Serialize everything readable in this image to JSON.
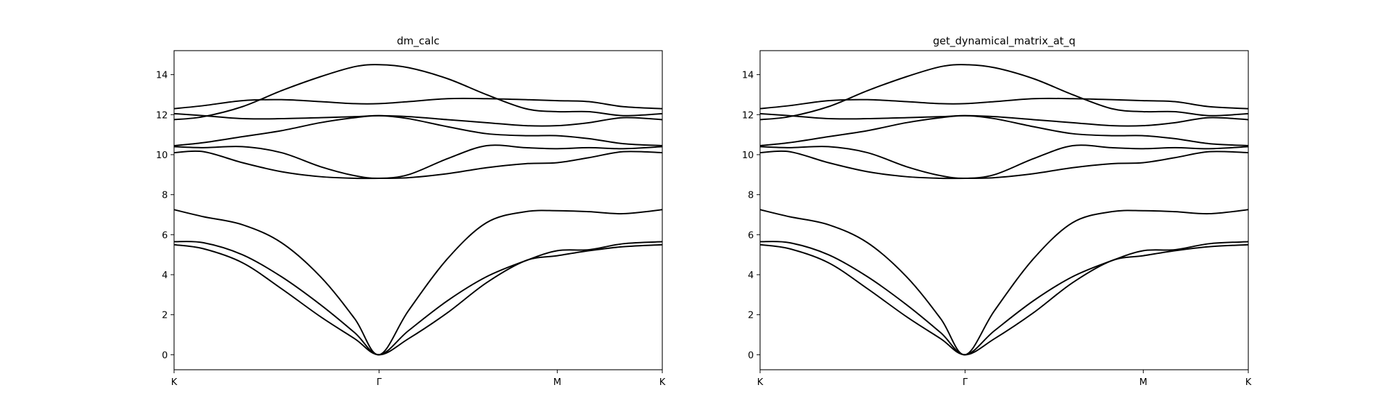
{
  "figure": {
    "background": "#ffffff",
    "line_color": "#000000"
  },
  "chart_data": [
    {
      "type": "line",
      "title": "dm_calc",
      "xlabel": "",
      "ylabel": "",
      "ylim": [
        -0.75,
        15.2
      ],
      "xlim": [
        0,
        1
      ],
      "yticks": [
        0,
        2,
        4,
        6,
        8,
        10,
        12,
        14
      ],
      "xticks": [
        {
          "pos": 0.0,
          "label": "K"
        },
        {
          "pos": 0.42,
          "label": "Γ"
        },
        {
          "pos": 0.785,
          "label": "M"
        },
        {
          "pos": 1.0,
          "label": "K"
        }
      ],
      "grid": false,
      "legend": "none",
      "x": [
        0,
        0.06,
        0.14,
        0.22,
        0.3,
        0.37,
        0.42,
        0.48,
        0.56,
        0.64,
        0.72,
        0.785,
        0.85,
        0.92,
        1.0
      ],
      "series": [
        {
          "values": [
            5.5,
            5.3,
            4.6,
            3.3,
            1.9,
            0.8,
            0.0,
            0.8,
            2.1,
            3.6,
            4.7,
            4.95,
            5.2,
            5.4,
            5.5
          ]
        },
        {
          "values": [
            5.65,
            5.6,
            5.0,
            3.9,
            2.5,
            1.1,
            0.0,
            1.2,
            2.7,
            3.9,
            4.7,
            5.2,
            5.25,
            5.55,
            5.65
          ]
        },
        {
          "values": [
            7.25,
            6.9,
            6.5,
            5.6,
            3.9,
            1.8,
            0.0,
            2.2,
            4.8,
            6.6,
            7.15,
            7.2,
            7.15,
            7.05,
            7.25
          ]
        },
        {
          "values": [
            10.1,
            10.15,
            9.6,
            9.15,
            8.9,
            8.82,
            8.82,
            8.85,
            9.05,
            9.35,
            9.55,
            9.6,
            9.85,
            10.15,
            10.1
          ]
        },
        {
          "values": [
            10.4,
            10.35,
            10.4,
            10.1,
            9.4,
            8.95,
            8.82,
            9.0,
            9.8,
            10.45,
            10.35,
            10.3,
            10.35,
            10.3,
            10.4
          ]
        },
        {
          "values": [
            10.45,
            10.6,
            10.9,
            11.2,
            11.6,
            11.85,
            11.95,
            11.8,
            11.4,
            11.05,
            10.95,
            10.95,
            10.8,
            10.55,
            10.45
          ]
        },
        {
          "values": [
            12.05,
            11.95,
            11.8,
            11.8,
            11.85,
            11.9,
            11.95,
            11.9,
            11.75,
            11.6,
            11.45,
            11.45,
            11.6,
            11.85,
            11.75
          ]
        },
        {
          "values": [
            11.75,
            11.9,
            12.4,
            13.2,
            13.9,
            14.4,
            14.5,
            14.35,
            13.8,
            13.0,
            12.3,
            12.15,
            12.15,
            11.95,
            12.05
          ]
        },
        {
          "values": [
            12.3,
            12.45,
            12.7,
            12.75,
            12.65,
            12.55,
            12.55,
            12.65,
            12.8,
            12.8,
            12.75,
            12.7,
            12.65,
            12.4,
            12.3
          ]
        }
      ]
    },
    {
      "type": "line",
      "title": "get_dynamical_matrix_at_q",
      "xlabel": "",
      "ylabel": "",
      "ylim": [
        -0.75,
        15.2
      ],
      "xlim": [
        0,
        1
      ],
      "yticks": [
        0,
        2,
        4,
        6,
        8,
        10,
        12,
        14
      ],
      "xticks": [
        {
          "pos": 0.0,
          "label": "K"
        },
        {
          "pos": 0.42,
          "label": "Γ"
        },
        {
          "pos": 0.785,
          "label": "M"
        },
        {
          "pos": 1.0,
          "label": "K"
        }
      ],
      "grid": false,
      "legend": "none",
      "x": [
        0,
        0.06,
        0.14,
        0.22,
        0.3,
        0.37,
        0.42,
        0.48,
        0.56,
        0.64,
        0.72,
        0.785,
        0.85,
        0.92,
        1.0
      ],
      "series": [
        {
          "values": [
            5.5,
            5.3,
            4.6,
            3.3,
            1.9,
            0.8,
            0.0,
            0.8,
            2.1,
            3.6,
            4.7,
            4.95,
            5.2,
            5.4,
            5.5
          ]
        },
        {
          "values": [
            5.65,
            5.6,
            5.0,
            3.9,
            2.5,
            1.1,
            0.0,
            1.2,
            2.7,
            3.9,
            4.7,
            5.2,
            5.25,
            5.55,
            5.65
          ]
        },
        {
          "values": [
            7.25,
            6.9,
            6.5,
            5.6,
            3.9,
            1.8,
            0.0,
            2.2,
            4.8,
            6.6,
            7.15,
            7.2,
            7.15,
            7.05,
            7.25
          ]
        },
        {
          "values": [
            10.1,
            10.15,
            9.6,
            9.15,
            8.9,
            8.82,
            8.82,
            8.85,
            9.05,
            9.35,
            9.55,
            9.6,
            9.85,
            10.15,
            10.1
          ]
        },
        {
          "values": [
            10.4,
            10.35,
            10.4,
            10.1,
            9.4,
            8.95,
            8.82,
            9.0,
            9.8,
            10.45,
            10.35,
            10.3,
            10.35,
            10.3,
            10.4
          ]
        },
        {
          "values": [
            10.45,
            10.6,
            10.9,
            11.2,
            11.6,
            11.85,
            11.95,
            11.8,
            11.4,
            11.05,
            10.95,
            10.95,
            10.8,
            10.55,
            10.45
          ]
        },
        {
          "values": [
            12.05,
            11.95,
            11.8,
            11.8,
            11.85,
            11.9,
            11.95,
            11.9,
            11.75,
            11.6,
            11.45,
            11.45,
            11.6,
            11.85,
            11.75
          ]
        },
        {
          "values": [
            11.75,
            11.9,
            12.4,
            13.2,
            13.9,
            14.4,
            14.5,
            14.35,
            13.8,
            13.0,
            12.3,
            12.15,
            12.15,
            11.95,
            12.05
          ]
        },
        {
          "values": [
            12.3,
            12.45,
            12.7,
            12.75,
            12.65,
            12.55,
            12.55,
            12.65,
            12.8,
            12.8,
            12.75,
            12.7,
            12.65,
            12.4,
            12.3
          ]
        }
      ]
    }
  ]
}
